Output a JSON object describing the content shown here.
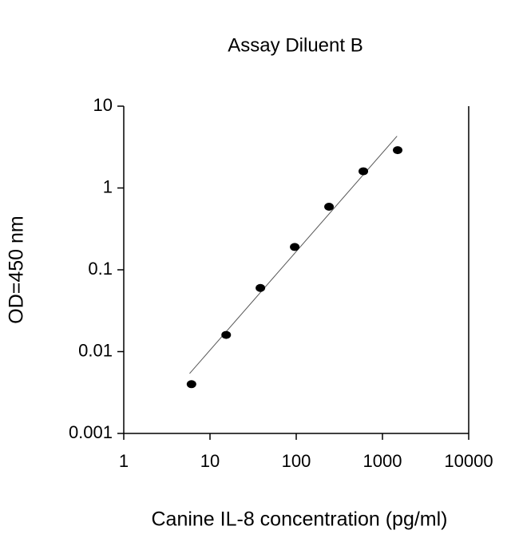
{
  "chart_data": {
    "type": "scatter",
    "title": "Assay Diluent B",
    "x_label": "Canine IL-8 concentration (pg/ml)",
    "y_label": "OD=450 nm",
    "x": [
      6.1,
      15.4,
      38.4,
      96,
      240,
      600,
      1500
    ],
    "values": [
      0.004,
      0.016,
      0.06,
      0.19,
      0.59,
      1.6,
      2.9
    ],
    "color": "#000000",
    "trendline": {
      "x": [
        5.8,
        1475
      ],
      "values": [
        0.0054,
        4.3
      ],
      "color": "#555555"
    },
    "xlim": [
      1,
      10000
    ],
    "xticks": [
      1,
      10,
      100,
      1000,
      10000
    ],
    "ylim": [
      0.001,
      10
    ],
    "yticks": [
      0.001,
      0.01,
      0.1,
      1,
      10
    ],
    "xscale": "log",
    "yscale": "log",
    "grid": false
  }
}
